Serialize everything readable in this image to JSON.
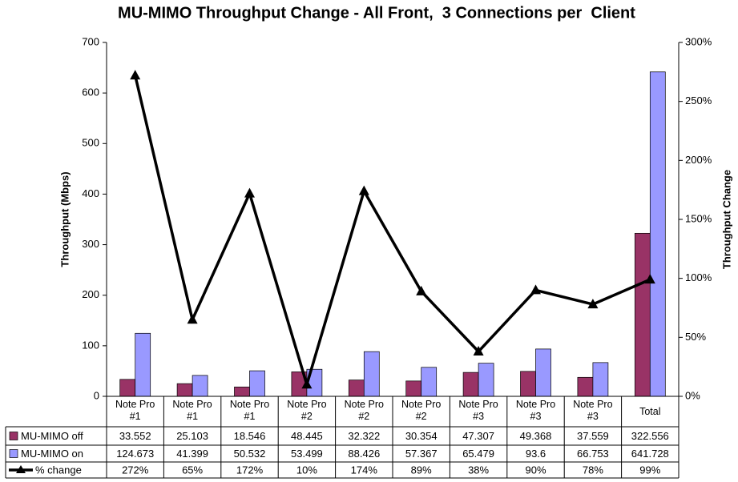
{
  "chart_data": {
    "type": "bar-line",
    "title": "MU-MIMO Throughput Change - All Front,  3 Connections per  Client",
    "ylabel": "Throughput (Mbps)",
    "y2label": "Throughput Change",
    "categories": [
      "Note Pro #1",
      "Note Pro #1",
      "Note Pro #1",
      "Note Pro #2",
      "Note Pro #2",
      "Note Pro #2",
      "Note Pro #3",
      "Note Pro #3",
      "Note Pro #3",
      "Total"
    ],
    "series": [
      {
        "name": "MU-MIMO off",
        "type": "bar",
        "color": "#993366",
        "values": [
          33.552,
          25.103,
          18.546,
          48.445,
          32.322,
          30.354,
          47.307,
          49.368,
          37.559,
          322.556
        ]
      },
      {
        "name": "MU-MIMO on",
        "type": "bar",
        "color": "#9999ff",
        "values": [
          124.673,
          41.399,
          50.532,
          53.499,
          88.426,
          57.367,
          65.479,
          93.6,
          66.753,
          641.728
        ]
      },
      {
        "name": "% change",
        "type": "line",
        "axis": "y2",
        "color": "#000000",
        "values": [
          272,
          65,
          172,
          10,
          174,
          89,
          38,
          90,
          78,
          99
        ],
        "value_labels": [
          "272%",
          "65%",
          "172%",
          "10%",
          "174%",
          "89%",
          "38%",
          "90%",
          "78%",
          "99%"
        ]
      }
    ],
    "ylim": [
      0,
      700
    ],
    "yticks": [
      0,
      100,
      200,
      300,
      400,
      500,
      600,
      700
    ],
    "y2lim": [
      0,
      300
    ],
    "y2ticks": [
      {
        "value": 0,
        "label": "0%"
      },
      {
        "value": 50,
        "label": "50%"
      },
      {
        "value": 100,
        "label": "100%"
      },
      {
        "value": 150,
        "label": "150%"
      },
      {
        "value": 200,
        "label": "200%"
      },
      {
        "value": 250,
        "label": "250%"
      },
      {
        "value": 300,
        "label": "300%"
      }
    ]
  }
}
